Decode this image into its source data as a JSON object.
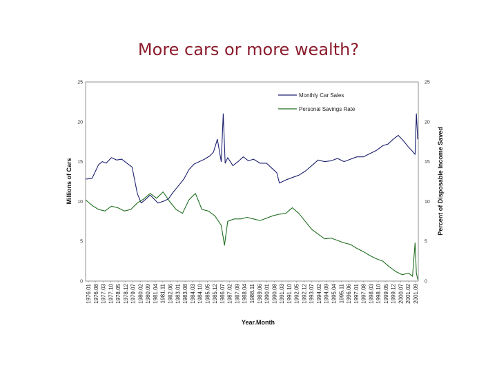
{
  "slide": {
    "title": "More cars or more wealth?"
  },
  "chart_data": {
    "type": "line",
    "title": "",
    "xlabel": "Year.Month",
    "ylabel": "Millions of Cars",
    "y2label": "Percent of Disposable Income Saved",
    "ylim": [
      0,
      25
    ],
    "y2lim": [
      0,
      25
    ],
    "yticks": [
      0,
      5,
      10,
      15,
      20,
      25
    ],
    "legend_position": "top-right",
    "grid": false,
    "x_start": 1976.0,
    "x_end": 2001.75,
    "x_tick_labels": [
      "1976.01",
      "1976.08",
      "1977.03",
      "1977.10",
      "1978.05",
      "1978.12",
      "1979.07",
      "1980.02",
      "1980.09",
      "1981.04",
      "1981.11",
      "1982.06",
      "1983.01",
      "1983.08",
      "1984.03",
      "1984.10",
      "1985.05",
      "1985.12",
      "1986.07",
      "1987.02",
      "1987.09",
      "1988.04",
      "1988.11",
      "1989.06",
      "1990.01",
      "1990.08",
      "1991.03",
      "1991.10",
      "1992.05",
      "1992.12",
      "1993.07",
      "1994.02",
      "1994.09",
      "1995.04",
      "1995.11",
      "1996.06",
      "1997.01",
      "1997.08",
      "1998.03",
      "1998.10",
      "1999.05",
      "1999.12",
      "2000.07",
      "2001.02",
      "2001.09"
    ],
    "series": [
      {
        "name": "Monthly Car Sales",
        "axis": "left",
        "color": "#1a1f6e",
        "x": [
          1976.0,
          1976.5,
          1977.0,
          1977.3,
          1977.6,
          1978.0,
          1978.4,
          1978.8,
          1979.2,
          1979.6,
          1980.0,
          1980.3,
          1980.6,
          1981.0,
          1981.3,
          1981.6,
          1982.0,
          1982.4,
          1982.8,
          1983.2,
          1983.6,
          1984.0,
          1984.4,
          1984.8,
          1985.2,
          1985.6,
          1985.9,
          1986.2,
          1986.5,
          1986.65,
          1986.8,
          1987.0,
          1987.4,
          1987.8,
          1988.2,
          1988.6,
          1989.0,
          1989.5,
          1990.0,
          1990.4,
          1990.8,
          1991.0,
          1991.5,
          1992.0,
          1992.5,
          1993.0,
          1993.5,
          1994.0,
          1994.5,
          1995.0,
          1995.5,
          1996.0,
          1996.5,
          1997.0,
          1997.5,
          1998.0,
          1998.5,
          1999.0,
          1999.4,
          1999.8,
          2000.2,
          2000.6,
          2001.0,
          2001.3,
          2001.5,
          2001.6,
          2001.7
        ],
        "y": [
          12.8,
          12.9,
          14.6,
          15.0,
          14.8,
          15.5,
          15.2,
          15.3,
          14.8,
          14.3,
          11.0,
          9.8,
          10.2,
          10.8,
          10.3,
          9.8,
          10.0,
          10.3,
          11.2,
          12.0,
          12.8,
          14.0,
          14.7,
          15.0,
          15.3,
          15.7,
          16.2,
          17.8,
          15.0,
          21.0,
          14.8,
          15.5,
          14.5,
          15.0,
          15.6,
          15.1,
          15.3,
          14.8,
          14.8,
          14.2,
          13.6,
          12.3,
          12.7,
          13.0,
          13.3,
          13.8,
          14.5,
          15.2,
          15.0,
          15.1,
          15.4,
          15.0,
          15.3,
          15.6,
          15.6,
          16.0,
          16.4,
          17.0,
          17.2,
          17.8,
          18.3,
          17.6,
          16.8,
          16.3,
          15.9,
          21.0,
          17.8
        ]
      },
      {
        "name": "Personal Savings Rate",
        "axis": "right",
        "color": "#1f6e1f",
        "x": [
          1976.0,
          1976.5,
          1977.0,
          1977.5,
          1978.0,
          1978.5,
          1979.0,
          1979.5,
          1980.0,
          1980.5,
          1981.0,
          1981.5,
          1982.0,
          1982.5,
          1983.0,
          1983.5,
          1984.0,
          1984.5,
          1985.0,
          1985.5,
          1986.0,
          1986.5,
          1986.75,
          1987.0,
          1987.5,
          1988.0,
          1988.5,
          1989.0,
          1989.5,
          1990.0,
          1990.5,
          1991.0,
          1991.5,
          1992.0,
          1992.5,
          1993.0,
          1993.5,
          1994.0,
          1994.5,
          1995.0,
          1995.5,
          1996.0,
          1996.5,
          1997.0,
          1997.5,
          1998.0,
          1998.5,
          1999.0,
          1999.5,
          2000.0,
          2000.5,
          2001.0,
          2001.3,
          2001.5,
          2001.6,
          2001.7
        ],
        "y": [
          10.2,
          9.5,
          9.0,
          8.8,
          9.4,
          9.2,
          8.8,
          9.0,
          9.8,
          10.3,
          11.0,
          10.4,
          11.2,
          10.0,
          9.0,
          8.5,
          10.2,
          11.0,
          9.0,
          8.8,
          8.2,
          7.0,
          4.5,
          7.5,
          7.8,
          7.8,
          8.0,
          7.8,
          7.6,
          7.9,
          8.2,
          8.4,
          8.5,
          9.2,
          8.5,
          7.5,
          6.5,
          5.9,
          5.3,
          5.4,
          5.1,
          4.8,
          4.6,
          4.1,
          3.7,
          3.2,
          2.8,
          2.5,
          1.8,
          1.2,
          0.8,
          1.0,
          0.6,
          4.8,
          1.0,
          0.2
        ]
      }
    ]
  }
}
